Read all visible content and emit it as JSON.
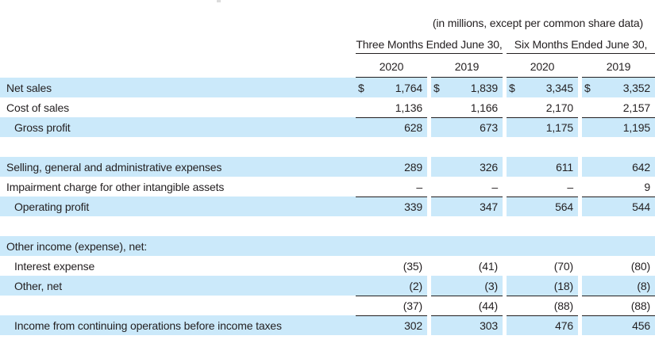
{
  "colors": {
    "row_highlight": "#cbe9fa",
    "rule": "#231f20",
    "text": "#231f20"
  },
  "table": {
    "caption": "(in millions, except per common share data)",
    "groups": [
      {
        "label": "Three Months Ended June 30,"
      },
      {
        "label": "Six Months Ended June 30,"
      }
    ],
    "years": [
      "2020",
      "2019",
      "2020",
      "2019"
    ],
    "rows": [
      {
        "label": "Net sales",
        "indent": 0,
        "highlight": true,
        "dollar": true,
        "values": [
          "1,764",
          "1,839",
          "3,345",
          "3,352"
        ]
      },
      {
        "label": "Cost of sales",
        "indent": 0,
        "highlight": false,
        "values": [
          "1,136",
          "1,166",
          "2,170",
          "2,157"
        ]
      },
      {
        "label": "Gross profit",
        "indent": 1,
        "highlight": true,
        "rule_above": true,
        "values": [
          "628",
          "673",
          "1,175",
          "1,195"
        ]
      },
      {
        "spacer": true
      },
      {
        "label": "Selling, general and administrative expenses",
        "indent": 0,
        "highlight": true,
        "values": [
          "289",
          "326",
          "611",
          "642"
        ]
      },
      {
        "label": "Impairment charge for other intangible assets",
        "indent": 0,
        "highlight": false,
        "values": [
          "–",
          "–",
          "–",
          "9"
        ]
      },
      {
        "label": "Operating profit",
        "indent": 1,
        "highlight": true,
        "rule_above": true,
        "values": [
          "339",
          "347",
          "564",
          "544"
        ]
      },
      {
        "spacer": true
      },
      {
        "label": "Other income (expense), net:",
        "indent": 0,
        "highlight": true,
        "section": true
      },
      {
        "label": "Interest expense",
        "indent": 1,
        "highlight": false,
        "values": [
          "(35)",
          "(41)",
          "(70)",
          "(80)"
        ]
      },
      {
        "label": "Other, net",
        "indent": 1,
        "highlight": true,
        "values": [
          "(2)",
          "(3)",
          "(18)",
          "(8)"
        ]
      },
      {
        "label": "",
        "indent": 0,
        "highlight": false,
        "rule_above": true,
        "values": [
          "(37)",
          "(44)",
          "(88)",
          "(88)"
        ]
      },
      {
        "label": "Income from continuing operations before income taxes",
        "indent": 1,
        "highlight": true,
        "rule_above": true,
        "values": [
          "302",
          "303",
          "476",
          "456"
        ]
      }
    ]
  }
}
